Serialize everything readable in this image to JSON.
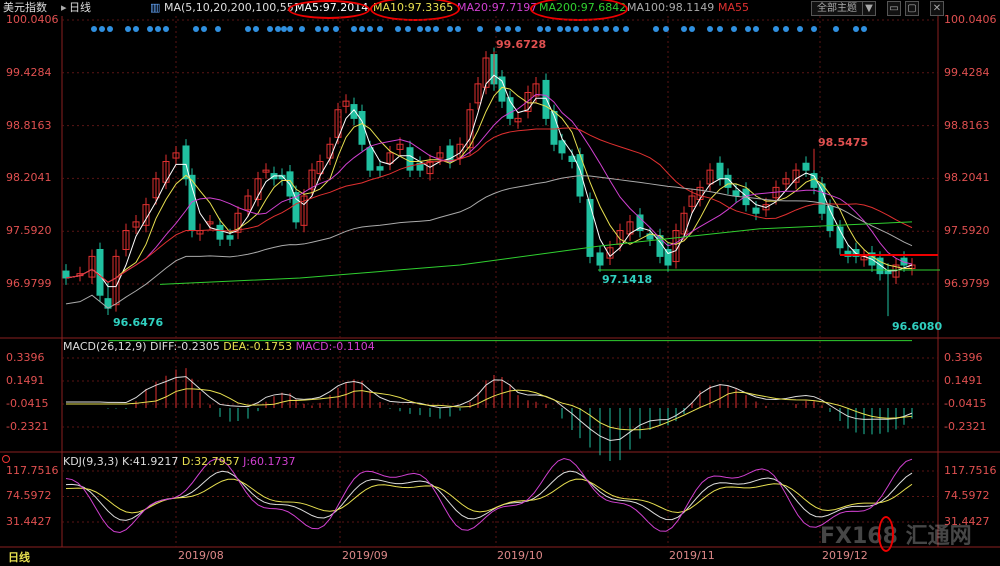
{
  "header": {
    "symbol": "美元指数",
    "period": "日线",
    "period_arrow": "▸",
    "ma_params": "MA(5,10,20,200,100,55)",
    "ma5": "MA5:97.2014",
    "ma10": "MA10:97.3365",
    "ma20": "MA20:97.7197",
    "ma200": "MA200:97.6842",
    "ma100": "MA100:98.1149",
    "ma55": "MA55",
    "topic_button": "全部主题",
    "topic_arrow": "▼",
    "colors": {
      "ma5": "#ffffff",
      "ma10": "#e8e050",
      "ma20": "#d040d0",
      "ma200": "#30d030",
      "ma100": "#aaaaaa",
      "ma55": "#e03030",
      "up": "#e03030",
      "down": "#20c0a0"
    }
  },
  "price_axis": {
    "ticks": [
      "100.0406",
      "99.4284",
      "98.8163",
      "98.2041",
      "97.5920",
      "96.9799"
    ]
  },
  "annotations": {
    "high": "99.6728",
    "mid_high": "98.5475",
    "mid_low": "97.1418",
    "low_left": "96.6476",
    "low_right": "96.6080"
  },
  "macd": {
    "title": "MACD(26,12,9)",
    "diff": "DIFF:-0.2305",
    "dea": "DEA:-0.1753",
    "macd": "MACD:-0.1104",
    "ticks": [
      "0.3396",
      "0.1491",
      "-0.0415",
      "-0.2321"
    ]
  },
  "kdj": {
    "title": "KDJ(9,3,3)",
    "k": "K:41.9217",
    "d": "D:32.7957",
    "j": "J:60.1737",
    "ticks": [
      "117.7516",
      "74.5972",
      "31.4427"
    ]
  },
  "x_axis": {
    "period_label": "日线",
    "dates": [
      "2019/08",
      "2019/09",
      "2019/10",
      "2019/11",
      "2019/12"
    ]
  },
  "watermark": "FX168 汇通网"
}
